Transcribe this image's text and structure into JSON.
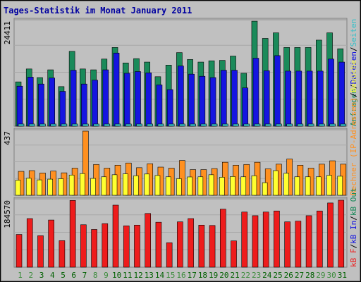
{
  "chart_data": {
    "type": "bar",
    "title": "Tages-Statistik im Monat January 2011",
    "colors": {
      "background": "#c0c0c0",
      "frame_bg": "#f0f0f0",
      "title": "#0000a0",
      "weekday_label": "#006000",
      "weekend_label": "#3c8c3c",
      "anfragen": "#1a8a5a",
      "dateien": "#1515e0",
      "seiten": "#3ac0c8",
      "rechner": "#ff9020",
      "besuche": "#ffff30",
      "kbf": "#ee1c1c",
      "kbin": "#1515e0",
      "kbout": "#1a8a5a"
    },
    "x": [
      "1",
      "2",
      "3",
      "4",
      "5",
      "6",
      "7",
      "8",
      "9",
      "10",
      "11",
      "12",
      "13",
      "14",
      "15",
      "16",
      "17",
      "18",
      "19",
      "20",
      "21",
      "22",
      "23",
      "24",
      "25",
      "26",
      "27",
      "28",
      "29",
      "30",
      "31"
    ],
    "weekend_days": [
      "1",
      "2",
      "8",
      "9",
      "15",
      "16",
      "22",
      "23",
      "29",
      "30"
    ],
    "panels": [
      {
        "key": "hits",
        "ymax_label": "24411",
        "ymax": 24411,
        "legend": [
          {
            "text": "Anfragen",
            "color": "#1a8a5a"
          },
          {
            "text": "/",
            "color": "#000000"
          },
          {
            "text": "Dateien",
            "color": "#1515e0"
          },
          {
            "text": "/",
            "color": "#000000"
          },
          {
            "text": "Seiten",
            "color": "#3ac0c8"
          }
        ],
        "series": [
          {
            "name": "Anfragen",
            "values": [
              10300,
              13300,
              11300,
              13100,
              9200,
              17400,
              13300,
              13100,
              15600,
              18300,
              14700,
              15700,
              14900,
              11500,
              14200,
              17100,
              15500,
              14900,
              15200,
              15300,
              16300,
              12300,
              24400,
              20400,
              21700,
              18300,
              18300,
              18300,
              20000,
              21700,
              18000
            ]
          },
          {
            "name": "Dateien",
            "values": [
              9300,
              11400,
              9800,
              11200,
              8100,
              13000,
              9800,
              10700,
              13100,
              17000,
              12300,
              12700,
              12400,
              9600,
              8500,
              14000,
              12100,
              11600,
              11300,
              13000,
              13000,
              8900,
              15800,
              12900,
              16400,
              12800,
              12800,
              12800,
              12800,
              15600,
              14900
            ]
          },
          {
            "name": "Seiten",
            "values": [
              500,
              500,
              500,
              500,
              500,
              500,
              500,
              500,
              500,
              500,
              500,
              500,
              500,
              500,
              500,
              500,
              500,
              500,
              500,
              500,
              500,
              500,
              500,
              500,
              500,
              500,
              500,
              500,
              500,
              500,
              500
            ]
          }
        ]
      },
      {
        "key": "visits",
        "ymax_label": "437",
        "ymax": 437,
        "legend": [
          {
            "text": "Rechner (IP-Adressen)",
            "color": "#ff9020"
          },
          {
            "text": "/",
            "color": "#000000"
          },
          {
            "text": "Besuche",
            "color": "#ffff30"
          }
        ],
        "series": [
          {
            "name": "Rechner (IP-Adressen)",
            "values": [
              163,
              168,
              152,
              165,
              153,
              185,
              437,
              210,
              185,
              205,
              220,
              188,
              215,
              192,
              185,
              237,
              175,
              175,
              182,
              225,
              205,
              210,
              225,
              180,
              212,
              247,
              205,
              185,
              212,
              235,
              212
            ]
          },
          {
            "name": "Besuche",
            "values": [
              103,
              116,
              105,
              110,
              113,
              138,
              148,
              115,
              126,
              140,
              146,
              133,
              145,
              135,
              126,
              113,
              125,
              126,
              140,
              123,
              128,
              126,
              133,
              86,
              168,
              150,
              126,
              126,
              126,
              136,
              130
            ]
          }
        ]
      },
      {
        "key": "kbytes",
        "ymax_label": "184570",
        "ymax": 184570,
        "legend": [
          {
            "text": "kB F",
            "color": "#ee1c1c"
          },
          {
            "text": "/",
            "color": "#000000"
          },
          {
            "text": "kB In",
            "color": "#1515e0"
          },
          {
            "text": "/",
            "color": "#000000"
          },
          {
            "text": "kB Out",
            "color": "#1a8a5a"
          }
        ],
        "series": [
          {
            "name": "kB F",
            "values": [
              90200,
              134000,
              86800,
              130000,
              73200,
              184000,
              117000,
              104000,
              120000,
              171000,
              114000,
              116000,
              148000,
              124000,
              67400,
              125000,
              134000,
              116000,
              115000,
              160000,
              72500,
              152000,
              142000,
              152000,
              155000,
              125000,
              127000,
              142000,
              155000,
              177000,
              184570
            ]
          },
          {
            "name": "kB In",
            "values": [
              0,
              0,
              0,
              0,
              0,
              0,
              0,
              0,
              0,
              0,
              0,
              0,
              0,
              0,
              0,
              0,
              0,
              0,
              0,
              0,
              0,
              0,
              0,
              0,
              0,
              0,
              0,
              0,
              0,
              0,
              0
            ]
          },
          {
            "name": "kB Out",
            "values": [
              0,
              0,
              0,
              0,
              0,
              0,
              0,
              0,
              0,
              0,
              0,
              0,
              0,
              0,
              0,
              0,
              0,
              0,
              0,
              0,
              0,
              0,
              0,
              0,
              0,
              0,
              0,
              0,
              0,
              0,
              0
            ]
          }
        ]
      }
    ]
  }
}
